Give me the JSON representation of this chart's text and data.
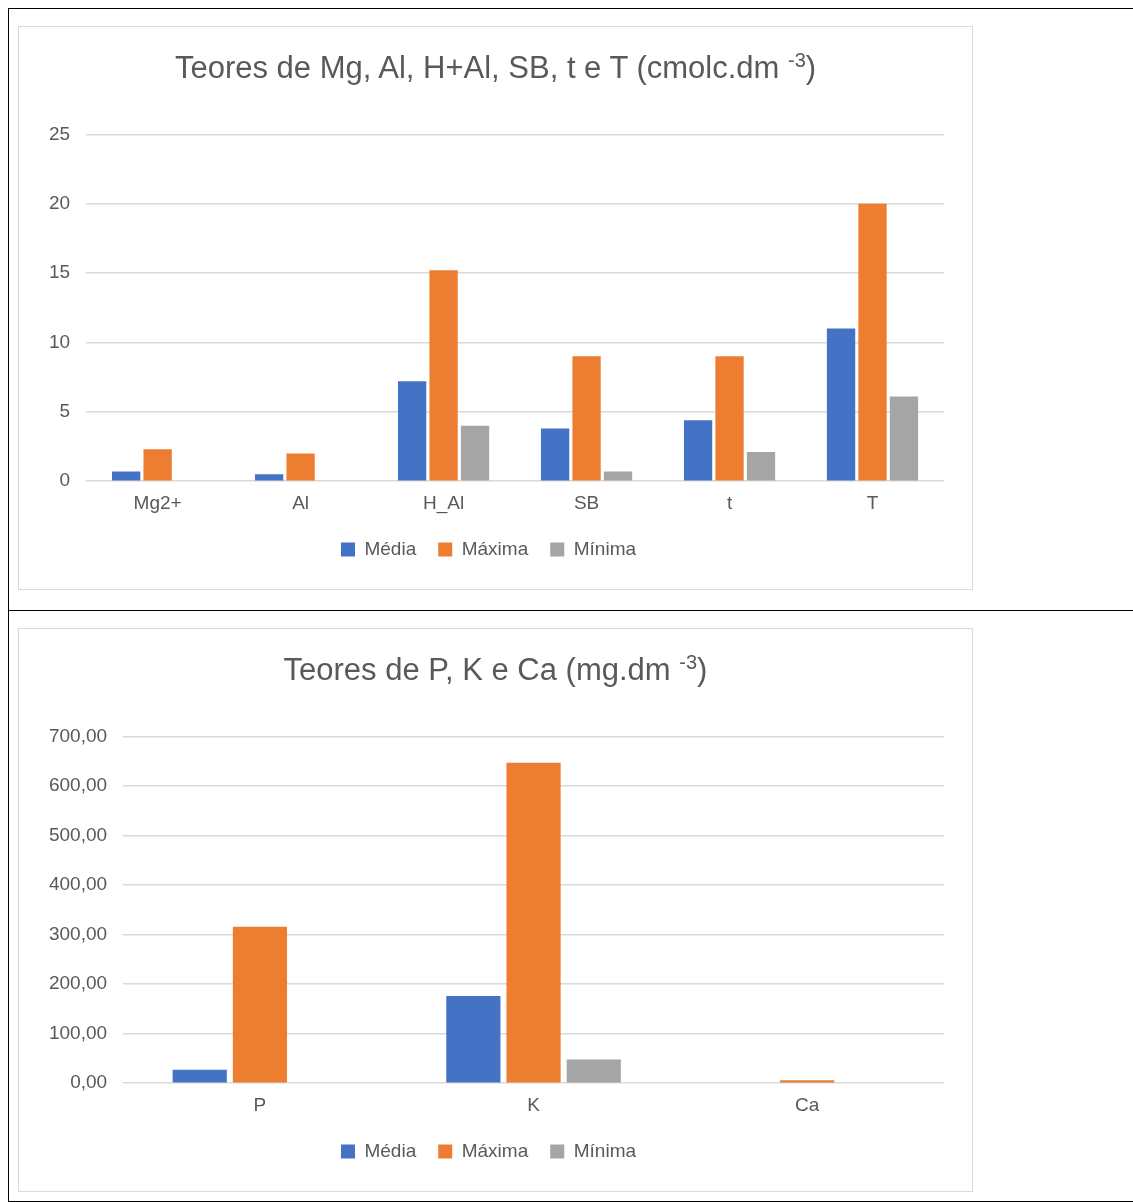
{
  "chart_data": [
    {
      "type": "bar",
      "title": "Teores de Mg, Al, H+Al, SB, t e T (cmolc.dm $^{-3}$)",
      "categories": [
        "Mg2+",
        "Al",
        "H_Al",
        "SB",
        "t",
        "T"
      ],
      "series": [
        {
          "name": "Média",
          "color": "#4472c4",
          "values": [
            0.7,
            0.5,
            7.2,
            3.8,
            4.4,
            11
          ]
        },
        {
          "name": "Máxima",
          "color": "#ed7d31",
          "values": [
            2.3,
            2,
            15.2,
            9,
            9,
            20
          ]
        },
        {
          "name": "Mínima",
          "color": "#a5a5a5",
          "values": [
            null,
            0,
            4,
            0.7,
            2.1,
            6.1
          ]
        }
      ],
      "ylim": [
        0,
        25
      ],
      "yticks": [
        0,
        5,
        10,
        15,
        20,
        25
      ],
      "grid": "y",
      "legend": "bottom"
    },
    {
      "type": "bar",
      "title": "Teores de P, K e Ca (mg.dm $^{-3}$)",
      "categories": [
        "P",
        "K",
        "Ca"
      ],
      "series": [
        {
          "name": "Média",
          "color": "#4472c4",
          "values": [
            27,
            176,
            null
          ]
        },
        {
          "name": "Máxima",
          "color": "#ed7d31",
          "values": [
            316,
            647,
            6
          ]
        },
        {
          "name": "Mínima",
          "color": "#a5a5a5",
          "values": [
            null,
            48,
            null
          ]
        }
      ],
      "ylim": [
        0,
        700
      ],
      "yticks": [
        {
          "value": 0,
          "label": "0,00"
        },
        {
          "value": 100,
          "label": "100,00"
        },
        {
          "value": 200,
          "label": "200,00"
        },
        {
          "value": 300,
          "label": "300,00"
        },
        {
          "value": 400,
          "label": "400,00"
        },
        {
          "value": 500,
          "label": "500,00"
        },
        {
          "value": 600,
          "label": "600,00"
        },
        {
          "value": 700,
          "label": "700,00"
        }
      ],
      "grid": "y",
      "legend": "bottom"
    }
  ]
}
